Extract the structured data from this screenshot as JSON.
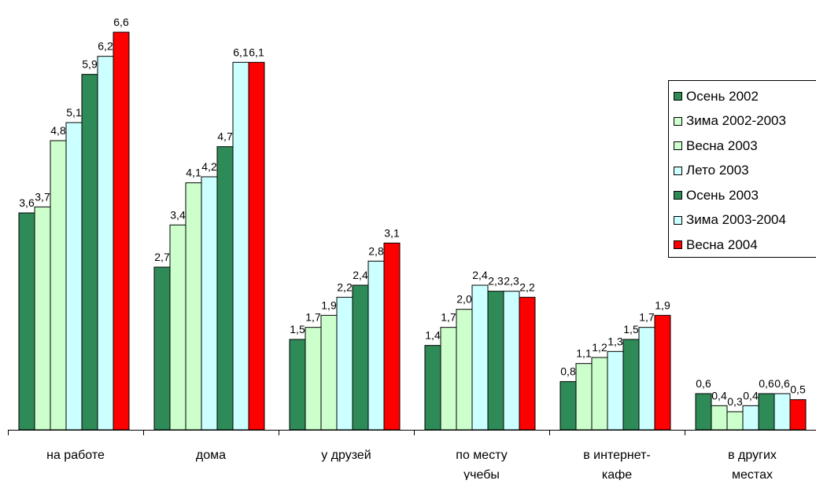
{
  "chart_data": {
    "type": "bar",
    "categories": [
      "на работе",
      "дома",
      "у друзей",
      "по месту учебы",
      "в интернет-кафе",
      "в других местах"
    ],
    "category_lines": [
      [
        "на работе"
      ],
      [
        "дома"
      ],
      [
        "у друзей"
      ],
      [
        "по месту",
        "учебы"
      ],
      [
        "в интернет-",
        "кафе"
      ],
      [
        "в других",
        "местах"
      ]
    ],
    "value_labels": [
      [
        "3,6",
        "3,7",
        "4,8",
        "5,1",
        "5,9",
        "6,2",
        "6,6"
      ],
      [
        "2,7",
        "3,4",
        "4,1",
        "4,2",
        "4,7",
        "6,1",
        "6,1"
      ],
      [
        "1,5",
        "1,7",
        "1,9",
        "2,2",
        "2,4",
        "2,8",
        "3,1"
      ],
      [
        "1,4",
        "1,7",
        "2,0",
        "2,4",
        "2,3",
        "2,3",
        "2,2"
      ],
      [
        "0,8",
        "1,1",
        "1,2",
        "1,3",
        "1,5",
        "1,7",
        "1,9"
      ],
      [
        "0,6",
        "0,4",
        "0,3",
        "0,4",
        "0,6",
        "0,6",
        "0,5"
      ]
    ],
    "series": [
      {
        "name": "Осень 2002",
        "color": "#2e8b57",
        "values": [
          3.6,
          2.7,
          1.5,
          1.4,
          0.8,
          0.6
        ]
      },
      {
        "name": "Зима 2002-2003",
        "color": "#ccffcc",
        "values": [
          3.7,
          3.4,
          1.7,
          1.7,
          1.1,
          0.4
        ]
      },
      {
        "name": "Весна 2003",
        "color": "#ccffcc",
        "values": [
          4.8,
          4.1,
          1.9,
          2.0,
          1.2,
          0.3
        ]
      },
      {
        "name": "Лето 2003",
        "color": "#ccffff",
        "values": [
          5.1,
          4.2,
          2.2,
          2.4,
          1.3,
          0.4
        ]
      },
      {
        "name": "Осень 2003",
        "color": "#2e8b57",
        "values": [
          5.9,
          4.7,
          2.4,
          2.3,
          1.5,
          0.6
        ]
      },
      {
        "name": "Зима 2003-2004",
        "color": "#ccffff",
        "values": [
          6.2,
          6.1,
          2.8,
          2.3,
          1.7,
          0.6
        ]
      },
      {
        "name": "Весна 2004",
        "color": "#ff0000",
        "values": [
          6.6,
          6.1,
          3.1,
          2.2,
          1.9,
          0.5
        ]
      }
    ],
    "ylim": [
      0,
      6.6
    ],
    "grid": false,
    "legend_position": "right"
  }
}
